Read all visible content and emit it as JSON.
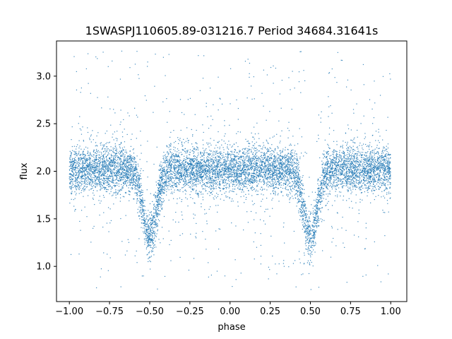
{
  "chart_data": {
    "type": "scatter",
    "title": "1SWASPJ110605.89-031216.7 Period 34684.31641s",
    "xlabel": "phase",
    "ylabel": "flux",
    "xlim": [
      -1.08,
      1.1
    ],
    "ylim": [
      0.63,
      3.37
    ],
    "x_ticks": [
      -1.0,
      -0.75,
      -0.5,
      -0.25,
      0.0,
      0.25,
      0.5,
      0.75,
      1.0
    ],
    "x_tick_labels": [
      "−1.00",
      "−0.75",
      "−0.50",
      "−0.25",
      "0.00",
      "0.25",
      "0.50",
      "0.75",
      "1.00"
    ],
    "y_ticks": [
      1.0,
      1.5,
      2.0,
      2.5,
      3.0
    ],
    "y_tick_labels": [
      "1.0",
      "1.5",
      "2.0",
      "2.5",
      "3.0"
    ],
    "grid": false,
    "marker_color": "#1f77b4",
    "series": [
      {
        "phase_range": [
          -1.0,
          1.0
        ],
        "baseline_flux": 2.02,
        "typical_spread": 0.12,
        "eclipses": [
          {
            "center_phase": -0.5,
            "min_flux": 1.3
          },
          {
            "center_phase": 0.5,
            "min_flux": 1.3
          }
        ],
        "flux_range": [
          0.75,
          3.27
        ]
      }
    ]
  }
}
